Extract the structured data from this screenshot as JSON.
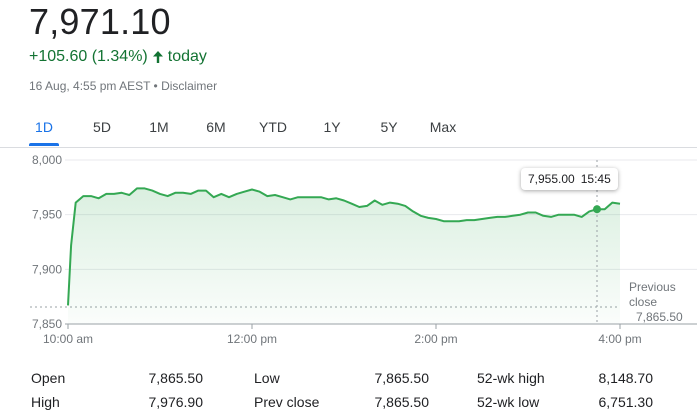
{
  "quote": {
    "price": "7,971.10",
    "change": "+105.60 (1.34%)",
    "period": "today",
    "timestamp": "16 Aug, 4:55 pm AEST",
    "separator": " • ",
    "disclaimer": "Disclaimer",
    "trend_color": "#137333",
    "line_color": "#34a853"
  },
  "tabs": [
    {
      "label": "1D",
      "active": true
    },
    {
      "label": "5D",
      "active": false
    },
    {
      "label": "1M",
      "active": false
    },
    {
      "label": "6M",
      "active": false
    },
    {
      "label": "YTD",
      "active": false
    },
    {
      "label": "1Y",
      "active": false
    },
    {
      "label": "5Y",
      "active": false
    },
    {
      "label": "Max",
      "active": false
    }
  ],
  "tooltip": {
    "value": "7,955.00",
    "time": "15:45"
  },
  "previous_close": {
    "label_line1": "Previous",
    "label_line2": "close",
    "value": "7,865.50"
  },
  "chart_data": {
    "type": "area",
    "xlabel": "",
    "ylabel": "",
    "y_ticks": [
      "8,000",
      "7,950",
      "7,900",
      "7,850"
    ],
    "x_ticks": [
      "10:00 am",
      "12:00 pm",
      "2:00 pm",
      "4:00 pm"
    ],
    "ylim": [
      7850,
      8000
    ],
    "previous_close": 7865.5,
    "series": [
      {
        "x": [
          "10:00",
          "10:02",
          "10:05",
          "10:10",
          "10:15",
          "10:20",
          "10:25",
          "10:30",
          "10:35",
          "10:40",
          "10:45",
          "10:50",
          "10:55",
          "11:00",
          "11:05",
          "11:10",
          "11:15",
          "11:20",
          "11:25",
          "11:30",
          "11:35",
          "11:40",
          "11:45",
          "11:50",
          "11:55",
          "12:00",
          "12:05",
          "12:10",
          "12:15",
          "12:20",
          "12:25",
          "12:30",
          "12:35",
          "12:40",
          "12:45",
          "12:50",
          "12:55",
          "13:00",
          "13:05",
          "13:10",
          "13:15",
          "13:20",
          "13:25",
          "13:30",
          "13:35",
          "13:40",
          "13:45",
          "13:50",
          "13:55",
          "14:00",
          "14:05",
          "14:10",
          "14:15",
          "14:20",
          "14:25",
          "14:30",
          "14:35",
          "14:40",
          "14:45",
          "14:50",
          "14:55",
          "15:00",
          "15:05",
          "15:10",
          "15:15",
          "15:20",
          "15:25",
          "15:30",
          "15:35",
          "15:40",
          "15:45",
          "15:50",
          "15:55",
          "16:00"
        ],
        "y": [
          7867,
          7922,
          7961,
          7967,
          7967,
          7965,
          7969,
          7969,
          7970,
          7968,
          7974,
          7974,
          7972,
          7969,
          7967,
          7970,
          7970,
          7969,
          7972,
          7972,
          7966,
          7969,
          7966,
          7969,
          7971,
          7973,
          7971,
          7967,
          7968,
          7966,
          7964,
          7966,
          7966,
          7966,
          7966,
          7964,
          7965,
          7963,
          7960,
          7957,
          7958,
          7963,
          7959,
          7961,
          7960,
          7958,
          7953,
          7949,
          7947,
          7946,
          7944,
          7944,
          7944,
          7945,
          7945,
          7946,
          7947,
          7948,
          7948,
          7949,
          7950,
          7952,
          7952,
          7949,
          7948,
          7950,
          7950,
          7950,
          7948,
          7953,
          7955,
          7955,
          7961,
          7960
        ]
      }
    ]
  },
  "stats": [
    {
      "label": "Open",
      "value": "7,865.50"
    },
    {
      "label": "High",
      "value": "7,976.90"
    },
    {
      "label": "Low",
      "value": "7,865.50"
    },
    {
      "label": "Prev close",
      "value": "7,865.50"
    },
    {
      "label": "52-wk high",
      "value": "8,148.70"
    },
    {
      "label": "52-wk low",
      "value": "6,751.30"
    }
  ]
}
